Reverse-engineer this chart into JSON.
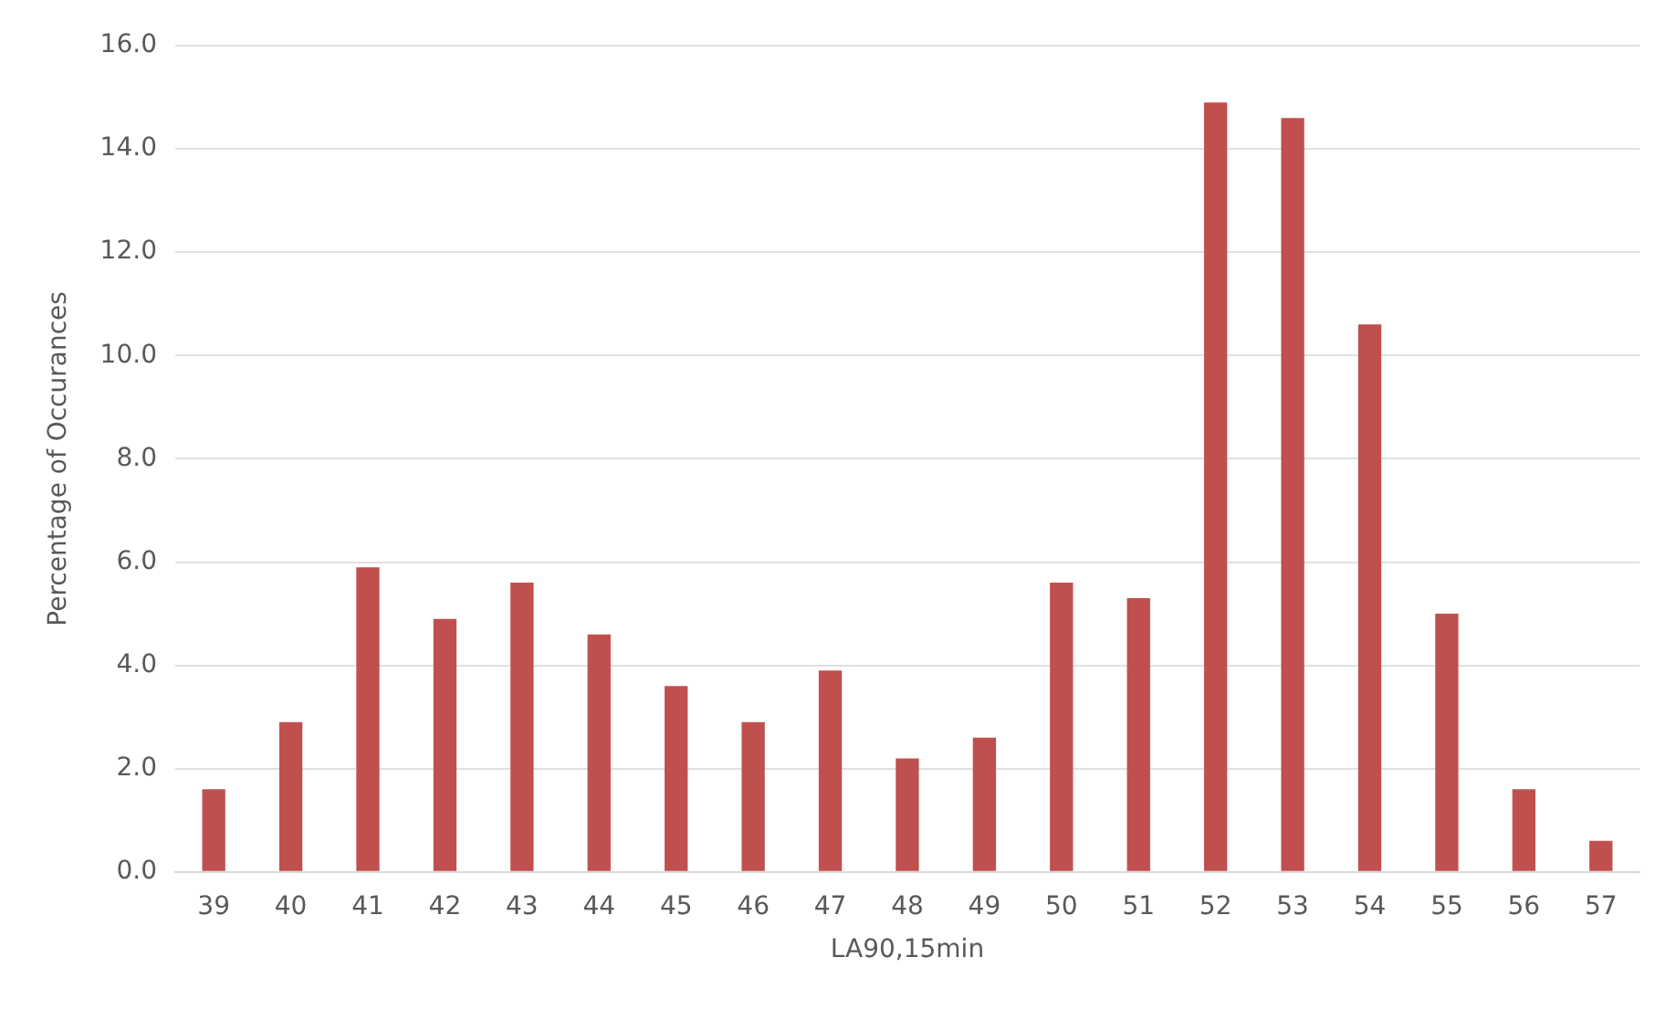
{
  "chart_data": {
    "type": "bar",
    "xlabel": "LA90,15min",
    "ylabel": "Percentage of Occurances",
    "categories": [
      "39",
      "40",
      "41",
      "42",
      "43",
      "44",
      "45",
      "46",
      "47",
      "48",
      "49",
      "50",
      "51",
      "52",
      "53",
      "54",
      "55",
      "56",
      "57"
    ],
    "values": [
      1.6,
      2.9,
      5.9,
      4.9,
      5.6,
      4.6,
      3.6,
      2.9,
      3.9,
      2.2,
      2.6,
      5.6,
      5.3,
      14.9,
      14.6,
      10.6,
      5.0,
      1.6,
      0.6
    ],
    "color": "#c0504d",
    "ylim": [
      0,
      16
    ],
    "yticks": [
      {
        "value": 0,
        "label": "0.0"
      },
      {
        "value": 2,
        "label": "2.0"
      },
      {
        "value": 4,
        "label": "4.0"
      },
      {
        "value": 6,
        "label": "6.0"
      },
      {
        "value": 8,
        "label": "8.0"
      },
      {
        "value": 10,
        "label": "10.0"
      },
      {
        "value": 12,
        "label": "12.0"
      },
      {
        "value": 14,
        "label": "14.0"
      },
      {
        "value": 16,
        "label": "16.0"
      }
    ],
    "grid": "y"
  }
}
